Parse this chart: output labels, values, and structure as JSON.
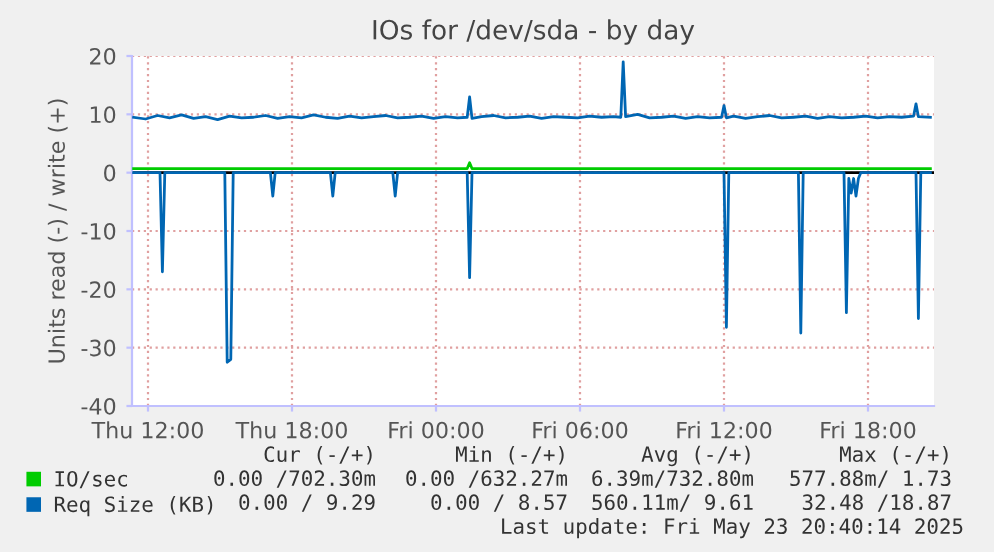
{
  "chart_data": {
    "type": "line",
    "title": "IOs for /dev/sda - by day",
    "ylabel": "Units read (-) / write (+)",
    "xlim": [
      "2025-05-22T11:20",
      "2025-05-23T20:45"
    ],
    "xticks": [
      {
        "value": "2025-05-22T12:00",
        "label": "Thu 12:00"
      },
      {
        "value": "2025-05-22T18:00",
        "label": "Thu 18:00"
      },
      {
        "value": "2025-05-23T00:00",
        "label": "Fri 00:00"
      },
      {
        "value": "2025-05-23T06:00",
        "label": "Fri 06:00"
      },
      {
        "value": "2025-05-23T12:00",
        "label": "Fri 12:00"
      },
      {
        "value": "2025-05-23T18:00",
        "label": "Fri 18:00"
      }
    ],
    "ylim": [
      -40,
      20
    ],
    "yticks": [
      -40,
      -30,
      -20,
      -10,
      0,
      10,
      20
    ],
    "grid": true,
    "legend": "bottom",
    "ref_lines": [
      {
        "axis": "y",
        "value": 0,
        "color": "#000000"
      }
    ],
    "series": [
      {
        "name": "IO/sec",
        "color": "#00cc00",
        "x": [
          "2025-05-22T11:24",
          "2025-05-23T01:18",
          "2025-05-23T01:24",
          "2025-05-23T01:30",
          "2025-05-23T20:36"
        ],
        "values": [
          0.7,
          0.7,
          1.7,
          0.7,
          0.7
        ]
      },
      {
        "name": "Req Size (KB)",
        "color": "#0066b3",
        "x": [
          "2025-05-22T11:24",
          "2025-05-22T11:54",
          "2025-05-22T12:24",
          "2025-05-22T12:54",
          "2025-05-22T13:24",
          "2025-05-22T13:54",
          "2025-05-22T14:24",
          "2025-05-22T14:54",
          "2025-05-22T15:24",
          "2025-05-22T15:54",
          "2025-05-22T16:24",
          "2025-05-22T16:54",
          "2025-05-22T17:24",
          "2025-05-22T17:54",
          "2025-05-22T18:24",
          "2025-05-22T18:54",
          "2025-05-22T19:24",
          "2025-05-22T19:54",
          "2025-05-22T20:24",
          "2025-05-22T20:54",
          "2025-05-22T21:24",
          "2025-05-22T21:54",
          "2025-05-22T22:24",
          "2025-05-22T22:54",
          "2025-05-22T23:24",
          "2025-05-22T23:54",
          "2025-05-23T00:24",
          "2025-05-23T00:54",
          "2025-05-23T01:18",
          "2025-05-23T01:24",
          "2025-05-23T01:30",
          "2025-05-23T01:54",
          "2025-05-23T02:24",
          "2025-05-23T02:54",
          "2025-05-23T03:24",
          "2025-05-23T03:54",
          "2025-05-23T04:24",
          "2025-05-23T04:54",
          "2025-05-23T05:24",
          "2025-05-23T05:54",
          "2025-05-23T06:24",
          "2025-05-23T06:54",
          "2025-05-23T07:24",
          "2025-05-23T07:42",
          "2025-05-23T07:48",
          "2025-05-23T07:54",
          "2025-05-23T08:24",
          "2025-05-23T08:54",
          "2025-05-23T09:24",
          "2025-05-23T09:54",
          "2025-05-23T10:24",
          "2025-05-23T10:54",
          "2025-05-23T11:24",
          "2025-05-23T11:54",
          "2025-05-23T12:00",
          "2025-05-23T12:06",
          "2025-05-23T12:24",
          "2025-05-23T12:54",
          "2025-05-23T13:24",
          "2025-05-23T13:54",
          "2025-05-23T14:24",
          "2025-05-23T14:54",
          "2025-05-23T15:24",
          "2025-05-23T15:54",
          "2025-05-23T16:24",
          "2025-05-23T16:54",
          "2025-05-23T17:24",
          "2025-05-23T17:54",
          "2025-05-23T18:24",
          "2025-05-23T18:54",
          "2025-05-23T19:24",
          "2025-05-23T19:54",
          "2025-05-23T20:00",
          "2025-05-23T20:06",
          "2025-05-23T20:36"
        ],
        "values": [
          9.5,
          9.2,
          9.8,
          9.4,
          9.9,
          9.3,
          9.6,
          9.1,
          9.7,
          9.4,
          9.5,
          9.8,
          9.3,
          9.6,
          9.4,
          9.9,
          9.5,
          9.3,
          9.7,
          9.4,
          9.6,
          9.8,
          9.4,
          9.5,
          9.7,
          9.3,
          9.6,
          9.4,
          9.5,
          13.0,
          9.3,
          9.6,
          9.8,
          9.4,
          9.5,
          9.7,
          9.3,
          9.6,
          9.5,
          9.4,
          9.7,
          9.5,
          9.6,
          9.5,
          19.0,
          9.6,
          10.0,
          9.4,
          9.5,
          9.7,
          9.3,
          9.6,
          9.4,
          9.5,
          11.5,
          9.4,
          9.7,
          9.3,
          9.6,
          9.8,
          9.4,
          9.5,
          9.7,
          9.3,
          9.6,
          9.4,
          9.5,
          9.7,
          9.4,
          9.6,
          9.5,
          9.7,
          11.8,
          9.6,
          9.5
        ]
      },
      {
        "color": "#0066b3",
        "x": [
          "2025-05-22T11:24",
          "2025-05-22T12:30",
          "2025-05-22T12:36",
          "2025-05-22T12:42",
          "2025-05-22T15:12",
          "2025-05-22T15:18",
          "2025-05-22T15:27",
          "2025-05-22T15:33",
          "2025-05-22T17:06",
          "2025-05-22T17:12",
          "2025-05-22T17:18",
          "2025-05-22T19:36",
          "2025-05-22T19:42",
          "2025-05-22T19:48",
          "2025-05-22T22:12",
          "2025-05-22T22:18",
          "2025-05-22T22:24",
          "2025-05-23T01:18",
          "2025-05-23T01:24",
          "2025-05-23T01:30",
          "2025-05-23T12:00",
          "2025-05-23T12:06",
          "2025-05-23T12:12",
          "2025-05-23T15:06",
          "2025-05-23T15:12",
          "2025-05-23T15:18",
          "2025-05-23T17:00",
          "2025-05-23T17:06",
          "2025-05-23T17:12",
          "2025-05-23T17:18",
          "2025-05-23T17:24",
          "2025-05-23T17:30",
          "2025-05-23T17:36",
          "2025-05-23T17:42",
          "2025-05-23T20:00",
          "2025-05-23T20:06",
          "2025-05-23T20:12",
          "2025-05-23T20:36"
        ],
        "values": [
          0,
          0,
          -17,
          0,
          0,
          -32.5,
          -32,
          0,
          0,
          -4,
          0,
          0,
          -4,
          0,
          0,
          -4,
          0,
          0,
          -18,
          0,
          0,
          -26.5,
          0,
          0,
          -27.5,
          0,
          0,
          -24,
          -1,
          -3.5,
          -1,
          -4,
          -1,
          0,
          0,
          -25,
          0,
          0
        ]
      }
    ],
    "annotations": [
      "Cur (-/+)",
      "Min (-/+)",
      "Avg (-/+)",
      "Max (-/+)",
      "0.00 /702.30m",
      "0.00 /632.27m",
      "6.39m/732.80m",
      "577.88m/ 1.73",
      "0.00 / 9.29",
      "0.00 / 8.57",
      "560.11m/ 9.61",
      "32.48 /18.87",
      "Last update: Fri May 23 20:40:14 2025"
    ]
  }
}
